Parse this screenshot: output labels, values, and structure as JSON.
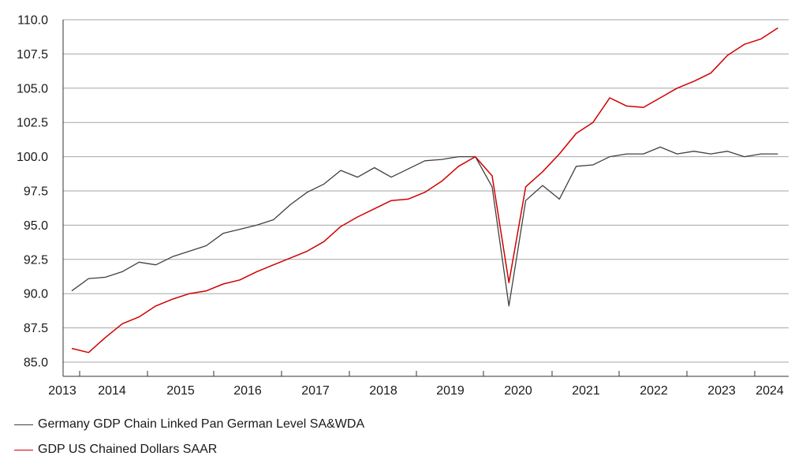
{
  "chart_data": {
    "type": "line",
    "ylim": [
      85.0,
      110.0
    ],
    "y_ticks": [
      "85.0",
      "87.5",
      "90.0",
      "92.5",
      "95.0",
      "97.5",
      "100.0",
      "102.5",
      "105.0",
      "107.5",
      "110.0"
    ],
    "x_tick_labels": [
      "2013",
      "2014",
      "2015",
      "2016",
      "2017",
      "2018",
      "2019",
      "2020",
      "2021",
      "2022",
      "2023",
      "2024"
    ],
    "grid": "horizontal",
    "legend_position": "bottom-left",
    "x": [
      "2013Q1",
      "2013Q2",
      "2013Q3",
      "2013Q4",
      "2014Q1",
      "2014Q2",
      "2014Q3",
      "2014Q4",
      "2015Q1",
      "2015Q2",
      "2015Q3",
      "2015Q4",
      "2016Q1",
      "2016Q2",
      "2016Q3",
      "2016Q4",
      "2017Q1",
      "2017Q2",
      "2017Q3",
      "2017Q4",
      "2018Q1",
      "2018Q2",
      "2018Q3",
      "2018Q4",
      "2019Q1",
      "2019Q2",
      "2019Q3",
      "2019Q4",
      "2020Q1",
      "2020Q2",
      "2020Q3",
      "2020Q4",
      "2021Q1",
      "2021Q2",
      "2021Q3",
      "2021Q4",
      "2022Q1",
      "2022Q2",
      "2022Q3",
      "2022Q4",
      "2023Q1",
      "2023Q2",
      "2023Q3",
      "2023Q4",
      "2024Q1"
    ],
    "series": [
      {
        "name": "Germany GDP Chain Linked Pan German Level SA&WDA",
        "color": "#404040",
        "values": [
          90.2,
          91.1,
          91.2,
          91.6,
          92.3,
          92.1,
          92.7,
          93.1,
          93.5,
          94.4,
          94.7,
          95.0,
          95.4,
          96.5,
          97.4,
          98.0,
          99.0,
          98.5,
          99.2,
          98.5,
          99.1,
          99.7,
          99.8,
          100.0,
          100.0,
          97.8,
          89.1,
          96.8,
          97.9,
          96.9,
          99.3,
          99.4,
          100.0,
          100.2,
          100.2,
          100.7,
          100.2,
          100.4,
          100.2,
          100.4,
          100.0,
          100.2,
          100.2,
          null,
          null
        ]
      },
      {
        "name": "GDP US Chained Dollars SAAR",
        "color": "#d00000",
        "values": [
          86.0,
          85.7,
          86.8,
          87.8,
          88.3,
          89.1,
          89.6,
          90.0,
          90.2,
          90.7,
          91.0,
          91.6,
          92.1,
          92.6,
          93.1,
          93.8,
          94.9,
          95.6,
          96.2,
          96.8,
          96.9,
          97.4,
          98.2,
          99.3,
          100.0,
          98.6,
          90.8,
          97.8,
          98.9,
          100.2,
          101.7,
          102.5,
          104.3,
          103.7,
          103.6,
          104.3,
          105.0,
          105.5,
          106.1,
          107.4,
          108.2,
          108.6,
          109.4,
          null,
          null
        ]
      }
    ]
  }
}
